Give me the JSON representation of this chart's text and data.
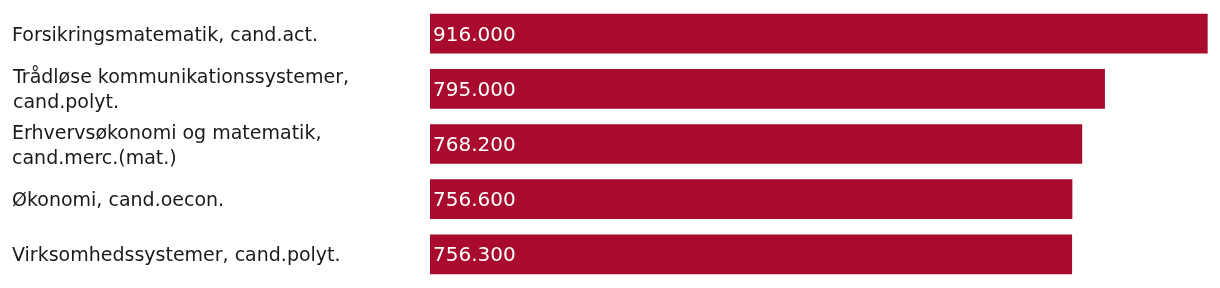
{
  "chart_data": {
    "type": "bar",
    "orientation": "horizontal",
    "categories": [
      "Forsikringsmatematik, cand.act.",
      "Trådløse kommunikationssystemer, cand.polyt.",
      "Erhvervsøkonomi og matematik, cand.merc.(mat.)",
      "Økonomi, cand.oecon.",
      "Virksomhedssystemer, cand.polyt."
    ],
    "values": [
      916000,
      795000,
      768200,
      756600,
      756300
    ],
    "value_labels": [
      "916.000",
      "795.000",
      "768.200",
      "756.600",
      "756.300"
    ],
    "color": "#a90b2e"
  }
}
